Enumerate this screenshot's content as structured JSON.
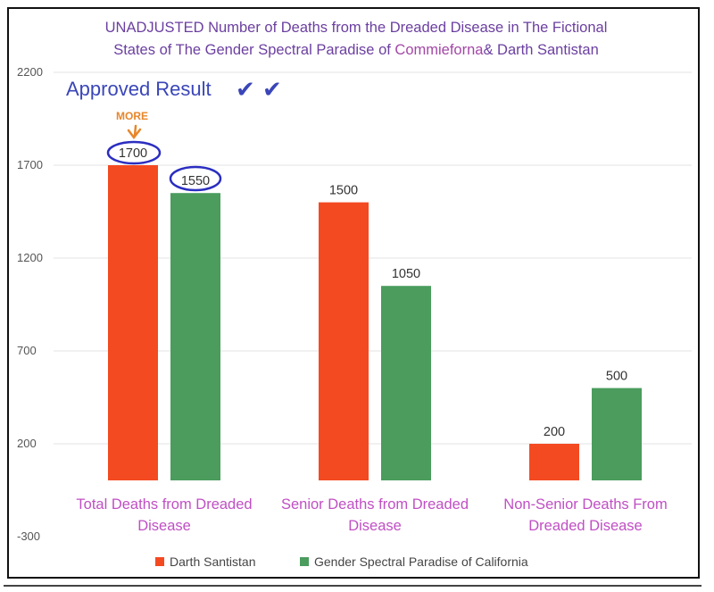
{
  "chart_data": {
    "type": "bar",
    "title_line1": "UNADJUSTED Number of Deaths from the Dreaded Disease in The Fictional",
    "title_line2_a": "States of The Gender Spectral Paradise of ",
    "title_line2_b": "Commieforna",
    "title_line2_c": "& Darth Santistan",
    "categories": [
      [
        "Total Deaths from Dreaded",
        "Disease"
      ],
      [
        "Senior Deaths from Dreaded",
        "Disease"
      ],
      [
        "Non-Senior Deaths From",
        "Dreaded Disease"
      ]
    ],
    "series": [
      {
        "name": "Darth Santistan",
        "color": "#f44a22",
        "values": [
          1700,
          1500,
          200
        ]
      },
      {
        "name": "Gender Spectral Paradise of California",
        "color": "#4b9c5d",
        "values": [
          1550,
          1050,
          500
        ]
      }
    ],
    "y_ticks": [
      -300,
      200,
      700,
      1200,
      1700,
      2200
    ],
    "ylim": [
      -300,
      2200
    ],
    "grid": true,
    "legend_position": "bottom",
    "annotations": {
      "approved": "Approved Result",
      "more": "MORE",
      "checkmarks": "✔ ✔"
    }
  }
}
